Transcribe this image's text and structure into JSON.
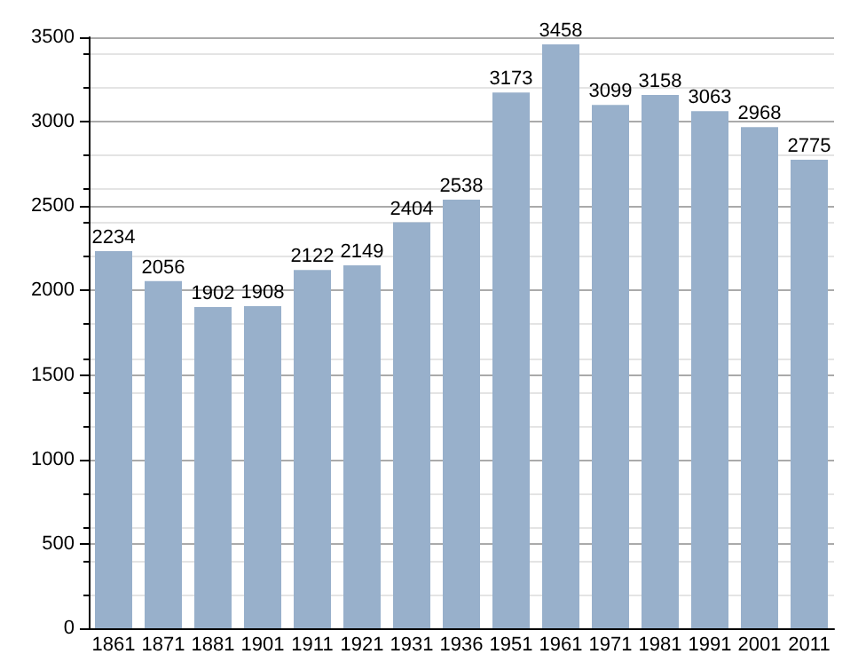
{
  "chart_data": {
    "type": "bar",
    "categories": [
      "1861",
      "1871",
      "1881",
      "1901",
      "1911",
      "1921",
      "1931",
      "1936",
      "1951",
      "1961",
      "1971",
      "1981",
      "1991",
      "2001",
      "2011"
    ],
    "values": [
      2234,
      2056,
      1902,
      1908,
      2122,
      2149,
      2404,
      2538,
      3173,
      3458,
      3099,
      3158,
      3063,
      2968,
      2775
    ],
    "color": "#98b0cb",
    "ylim": [
      0,
      3500
    ],
    "yticks": [
      0,
      500,
      1000,
      1500,
      2000,
      2500,
      3000,
      3500
    ],
    "grid": "y",
    "data_labels": true
  }
}
